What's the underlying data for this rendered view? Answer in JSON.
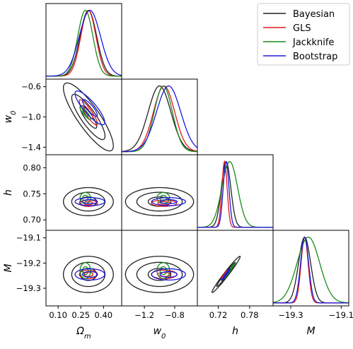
{
  "chart_data": {
    "type": "corner",
    "parameters": [
      {
        "key": "om",
        "label": "Ωm",
        "label_main": "Ω",
        "label_sub": "m",
        "range": [
          0.02,
          0.52
        ],
        "ticks": [
          0.1,
          0.25,
          0.4
        ],
        "tick_labels": [
          "0.10",
          "0.25",
          "0.40"
        ]
      },
      {
        "key": "w0",
        "label": "w0",
        "label_main": "w",
        "label_sub": "0",
        "range": [
          -1.5,
          -0.5
        ],
        "ticks": [
          -1.4,
          -1.0,
          -0.6
        ],
        "tick_labels": [
          "−1.4",
          "−1.0",
          "−0.6"
        ],
        "xticks": [
          -1.2,
          -0.8
        ],
        "xtick_labels": [
          "−1.2",
          "−0.8"
        ]
      },
      {
        "key": "h",
        "label": "h",
        "label_main": "h",
        "label_sub": "",
        "range": [
          0.68,
          0.825
        ],
        "ticks": [
          0.7,
          0.75,
          0.8
        ],
        "tick_labels": [
          "0.70",
          "0.75",
          "0.80"
        ],
        "xticks": [
          0.72,
          0.78
        ],
        "xtick_labels": [
          "0.72",
          "0.78"
        ]
      },
      {
        "key": "M",
        "label": "M",
        "label_main": "M",
        "label_sub": "",
        "range": [
          -19.37,
          -19.07
        ],
        "ticks": [
          -19.3,
          -19.2,
          -19.1
        ],
        "tick_labels": [
          "−19.3",
          "−19.2",
          "−19.1"
        ],
        "xticks": [
          -19.3,
          -19.1
        ],
        "xtick_labels": [
          "−19.3",
          "−19.1"
        ]
      }
    ],
    "legend": {
      "placement": "top-right",
      "entries": [
        {
          "name": "Bayesian",
          "color": "#222222"
        },
        {
          "name": "GLS",
          "color": "#e31a1c"
        },
        {
          "name": "Jackknife",
          "color": "#1a8a1a"
        },
        {
          "name": "Bootstrap",
          "color": "#1a1adf"
        }
      ]
    },
    "methods": [
      {
        "name": "Bayesian",
        "color": "#222222",
        "mean": {
          "om": 0.3,
          "w0": -1.0,
          "h": 0.735,
          "M": -19.245
        },
        "sigma": {
          "om": 0.055,
          "w0": 0.15,
          "h": 0.009,
          "M": 0.024
        },
        "corr": {
          "om_w0": -0.85,
          "h_M": 0.98
        },
        "levels": [
          1,
          2,
          3
        ]
      },
      {
        "name": "GLS",
        "color": "#e31a1c",
        "mean": {
          "om": 0.3,
          "w0": -0.94,
          "h": 0.732,
          "M": -19.245
        },
        "sigma": {
          "om": 0.05,
          "w0": 0.14,
          "h": 0.005,
          "M": 0.014
        },
        "corr": {
          "om_w0": -0.9,
          "h_M": 0.98
        },
        "levels": [
          0.6,
          1.2
        ]
      },
      {
        "name": "Jackknife",
        "color": "#1a8a1a",
        "mean": {
          "om": 0.28,
          "w0": -0.95,
          "h": 0.742,
          "M": -19.23
        },
        "sigma": {
          "om": 0.05,
          "w0": 0.12,
          "h": 0.015,
          "M": 0.045
        },
        "corr": {
          "om_w0": -0.88,
          "h_M": 0.99
        },
        "levels": [
          0.35,
          0.7
        ]
      },
      {
        "name": "Bootstrap",
        "color": "#1a1adf",
        "mean": {
          "om": 0.31,
          "w0": -0.88,
          "h": 0.735,
          "M": -19.245
        },
        "sigma": {
          "om": 0.07,
          "w0": 0.16,
          "h": 0.0055,
          "M": 0.016
        },
        "corr": {
          "om_w0": -0.85,
          "h_M": 0.98
        },
        "levels": [
          0.7,
          1.4
        ]
      }
    ],
    "grid": false
  }
}
